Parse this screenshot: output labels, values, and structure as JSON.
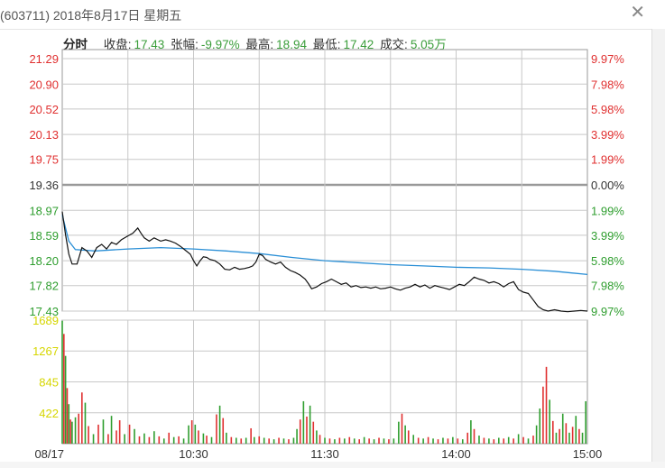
{
  "window": {
    "title": "(603711) 2018年8月17日 星期五",
    "close_label": "✕"
  },
  "stats": {
    "mode": "分时",
    "close_label": "收盘:",
    "close_value": "17.43",
    "change_label": "张幅:",
    "change_value": "-9.97%",
    "high_label": "最高:",
    "high_value": "18.94",
    "low_label": "最低:",
    "low_value": "17.42",
    "volume_label": "成交:",
    "volume_value": "5.05万"
  },
  "colors": {
    "up": "#e03030",
    "down": "#2f9e2f",
    "price_line": "#111111",
    "avg_line": "#2a8fd6",
    "grid": "#c8c8c8",
    "baseline": "#999999",
    "vol_axis": "#d6d600"
  },
  "chart_data": {
    "type": "line",
    "title": "",
    "x_ticks": [
      "08/17",
      "10:30",
      "11:30",
      "14:00",
      "15:00"
    ],
    "price_axis": {
      "ylim": [
        17.43,
        21.29
      ],
      "ticks": [
        "21.29",
        "20.90",
        "20.52",
        "20.13",
        "19.75",
        "19.36",
        "18.97",
        "18.59",
        "18.20",
        "17.82",
        "17.43"
      ],
      "pct_ticks": [
        "9.97%",
        "7.98%",
        "5.98%",
        "3.99%",
        "1.99%",
        "0.00%",
        "1.99%",
        "3.99%",
        "5.98%",
        "7.98%",
        "9.97%"
      ],
      "prev_close": 19.36
    },
    "volume_axis": {
      "ylim": [
        0,
        1689
      ],
      "ticks": [
        "1689",
        "1267",
        "845",
        "422"
      ]
    },
    "series": [
      {
        "key": "price",
        "points": [
          [
            0,
            18.95
          ],
          [
            2,
            18.6
          ],
          [
            4,
            18.3
          ],
          [
            6,
            18.15
          ],
          [
            9,
            18.15
          ],
          [
            12,
            18.4
          ],
          [
            15,
            18.35
          ],
          [
            18,
            18.25
          ],
          [
            21,
            18.4
          ],
          [
            24,
            18.45
          ],
          [
            27,
            18.38
          ],
          [
            30,
            18.48
          ],
          [
            33,
            18.45
          ],
          [
            36,
            18.52
          ],
          [
            40,
            18.58
          ],
          [
            43,
            18.62
          ],
          [
            46,
            18.7
          ],
          [
            48,
            18.62
          ],
          [
            50,
            18.55
          ],
          [
            53,
            18.5
          ],
          [
            56,
            18.55
          ],
          [
            60,
            18.5
          ],
          [
            63,
            18.52
          ],
          [
            66,
            18.5
          ],
          [
            69,
            18.47
          ],
          [
            72,
            18.42
          ],
          [
            75,
            18.36
          ],
          [
            78,
            18.3
          ],
          [
            80,
            18.2
          ],
          [
            82,
            18.12
          ],
          [
            84,
            18.2
          ],
          [
            86,
            18.26
          ],
          [
            88,
            18.25
          ],
          [
            90,
            18.22
          ],
          [
            93,
            18.2
          ],
          [
            96,
            18.15
          ],
          [
            99,
            18.07
          ],
          [
            102,
            18.06
          ],
          [
            105,
            18.1
          ],
          [
            108,
            18.07
          ],
          [
            111,
            18.08
          ],
          [
            114,
            18.1
          ],
          [
            116,
            18.12
          ],
          [
            118,
            18.18
          ],
          [
            120,
            18.3
          ],
          [
            122,
            18.28
          ],
          [
            124,
            18.22
          ],
          [
            127,
            18.18
          ],
          [
            130,
            18.15
          ],
          [
            133,
            18.18
          ],
          [
            136,
            18.1
          ],
          [
            139,
            18.05
          ],
          [
            142,
            18.02
          ],
          [
            145,
            17.98
          ],
          [
            148,
            17.92
          ],
          [
            150,
            17.85
          ],
          [
            152,
            17.77
          ],
          [
            155,
            17.8
          ],
          [
            158,
            17.85
          ],
          [
            161,
            17.88
          ],
          [
            164,
            17.92
          ],
          [
            167,
            17.88
          ],
          [
            170,
            17.84
          ],
          [
            173,
            17.86
          ],
          [
            176,
            17.8
          ],
          [
            179,
            17.82
          ],
          [
            182,
            17.79
          ],
          [
            185,
            17.8
          ],
          [
            188,
            17.78
          ],
          [
            191,
            17.8
          ],
          [
            194,
            17.77
          ],
          [
            197,
            17.78
          ],
          [
            200,
            17.8
          ],
          [
            203,
            17.77
          ],
          [
            206,
            17.75
          ],
          [
            209,
            17.78
          ],
          [
            212,
            17.8
          ],
          [
            215,
            17.84
          ],
          [
            218,
            17.8
          ],
          [
            221,
            17.83
          ],
          [
            224,
            17.78
          ],
          [
            227,
            17.82
          ],
          [
            230,
            17.8
          ],
          [
            233,
            17.78
          ],
          [
            236,
            17.76
          ],
          [
            239,
            17.8
          ],
          [
            242,
            17.84
          ],
          [
            245,
            17.82
          ],
          [
            248,
            17.88
          ],
          [
            251,
            17.95
          ],
          [
            254,
            17.92
          ],
          [
            257,
            17.9
          ],
          [
            260,
            17.86
          ],
          [
            263,
            17.88
          ],
          [
            266,
            17.85
          ],
          [
            269,
            17.8
          ],
          [
            272,
            17.85
          ],
          [
            275,
            17.88
          ],
          [
            278,
            17.76
          ],
          [
            281,
            17.72
          ],
          [
            284,
            17.7
          ],
          [
            287,
            17.6
          ],
          [
            290,
            17.5
          ],
          [
            293,
            17.45
          ],
          [
            296,
            17.43
          ],
          [
            300,
            17.45
          ],
          [
            304,
            17.43
          ],
          [
            308,
            17.42
          ],
          [
            312,
            17.43
          ],
          [
            316,
            17.44
          ],
          [
            320,
            17.43
          ]
        ]
      },
      {
        "key": "average",
        "points": [
          [
            0,
            18.9
          ],
          [
            4,
            18.5
          ],
          [
            8,
            18.37
          ],
          [
            20,
            18.35
          ],
          [
            40,
            18.38
          ],
          [
            60,
            18.4
          ],
          [
            80,
            18.38
          ],
          [
            100,
            18.35
          ],
          [
            120,
            18.31
          ],
          [
            140,
            18.25
          ],
          [
            160,
            18.2
          ],
          [
            180,
            18.17
          ],
          [
            200,
            18.14
          ],
          [
            220,
            18.12
          ],
          [
            240,
            18.1
          ],
          [
            260,
            18.09
          ],
          [
            280,
            18.07
          ],
          [
            300,
            18.04
          ],
          [
            320,
            17.99
          ]
        ]
      }
    ],
    "volume": [
      {
        "t": 0,
        "v": 1680,
        "up": false
      },
      {
        "t": 1,
        "v": 1500,
        "up": true
      },
      {
        "t": 2,
        "v": 1200,
        "up": false
      },
      {
        "t": 3,
        "v": 760,
        "up": true
      },
      {
        "t": 4,
        "v": 540,
        "up": false
      },
      {
        "t": 5,
        "v": 330,
        "up": true
      },
      {
        "t": 6,
        "v": 300,
        "up": false
      },
      {
        "t": 8,
        "v": 360,
        "up": false
      },
      {
        "t": 10,
        "v": 410,
        "up": true
      },
      {
        "t": 12,
        "v": 700,
        "up": true
      },
      {
        "t": 14,
        "v": 560,
        "up": false
      },
      {
        "t": 16,
        "v": 240,
        "up": true
      },
      {
        "t": 19,
        "v": 130,
        "up": false
      },
      {
        "t": 22,
        "v": 260,
        "up": true
      },
      {
        "t": 25,
        "v": 330,
        "up": false
      },
      {
        "t": 28,
        "v": 130,
        "up": true
      },
      {
        "t": 30,
        "v": 380,
        "up": false
      },
      {
        "t": 33,
        "v": 180,
        "up": true
      },
      {
        "t": 35,
        "v": 320,
        "up": true
      },
      {
        "t": 38,
        "v": 130,
        "up": false
      },
      {
        "t": 41,
        "v": 260,
        "up": true
      },
      {
        "t": 44,
        "v": 200,
        "up": false
      },
      {
        "t": 47,
        "v": 100,
        "up": true
      },
      {
        "t": 50,
        "v": 140,
        "up": false
      },
      {
        "t": 53,
        "v": 90,
        "up": true
      },
      {
        "t": 56,
        "v": 170,
        "up": false
      },
      {
        "t": 59,
        "v": 100,
        "up": true
      },
      {
        "t": 62,
        "v": 70,
        "up": false
      },
      {
        "t": 65,
        "v": 150,
        "up": true
      },
      {
        "t": 68,
        "v": 90,
        "up": false
      },
      {
        "t": 71,
        "v": 100,
        "up": true
      },
      {
        "t": 74,
        "v": 70,
        "up": false
      },
      {
        "t": 77,
        "v": 250,
        "up": false
      },
      {
        "t": 79,
        "v": 320,
        "up": true
      },
      {
        "t": 81,
        "v": 260,
        "up": false
      },
      {
        "t": 83,
        "v": 180,
        "up": true
      },
      {
        "t": 86,
        "v": 140,
        "up": false
      },
      {
        "t": 88,
        "v": 110,
        "up": true
      },
      {
        "t": 91,
        "v": 90,
        "up": false
      },
      {
        "t": 94,
        "v": 400,
        "up": true
      },
      {
        "t": 96,
        "v": 520,
        "up": false
      },
      {
        "t": 98,
        "v": 350,
        "up": true
      },
      {
        "t": 100,
        "v": 150,
        "up": false
      },
      {
        "t": 103,
        "v": 90,
        "up": true
      },
      {
        "t": 106,
        "v": 80,
        "up": false
      },
      {
        "t": 109,
        "v": 70,
        "up": true
      },
      {
        "t": 112,
        "v": 80,
        "up": false
      },
      {
        "t": 115,
        "v": 210,
        "up": true
      },
      {
        "t": 117,
        "v": 90,
        "up": false
      },
      {
        "t": 120,
        "v": 100,
        "up": true
      },
      {
        "t": 123,
        "v": 80,
        "up": false
      },
      {
        "t": 126,
        "v": 70,
        "up": true
      },
      {
        "t": 129,
        "v": 60,
        "up": false
      },
      {
        "t": 132,
        "v": 80,
        "up": true
      },
      {
        "t": 135,
        "v": 70,
        "up": false
      },
      {
        "t": 138,
        "v": 60,
        "up": true
      },
      {
        "t": 141,
        "v": 80,
        "up": false
      },
      {
        "t": 143,
        "v": 200,
        "up": false
      },
      {
        "t": 145,
        "v": 330,
        "up": true
      },
      {
        "t": 147,
        "v": 580,
        "up": false
      },
      {
        "t": 149,
        "v": 370,
        "up": true
      },
      {
        "t": 151,
        "v": 520,
        "up": false
      },
      {
        "t": 153,
        "v": 300,
        "up": true
      },
      {
        "t": 155,
        "v": 180,
        "up": false
      },
      {
        "t": 157,
        "v": 120,
        "up": true
      },
      {
        "t": 160,
        "v": 80,
        "up": false
      },
      {
        "t": 163,
        "v": 70,
        "up": true
      },
      {
        "t": 166,
        "v": 60,
        "up": false
      },
      {
        "t": 169,
        "v": 80,
        "up": true
      },
      {
        "t": 172,
        "v": 70,
        "up": false
      },
      {
        "t": 175,
        "v": 90,
        "up": true
      },
      {
        "t": 178,
        "v": 70,
        "up": false
      },
      {
        "t": 181,
        "v": 60,
        "up": true
      },
      {
        "t": 184,
        "v": 90,
        "up": false
      },
      {
        "t": 187,
        "v": 70,
        "up": true
      },
      {
        "t": 190,
        "v": 60,
        "up": false
      },
      {
        "t": 193,
        "v": 80,
        "up": true
      },
      {
        "t": 196,
        "v": 70,
        "up": false
      },
      {
        "t": 199,
        "v": 60,
        "up": true
      },
      {
        "t": 202,
        "v": 70,
        "up": false
      },
      {
        "t": 205,
        "v": 300,
        "up": false
      },
      {
        "t": 207,
        "v": 410,
        "up": true
      },
      {
        "t": 209,
        "v": 250,
        "up": false
      },
      {
        "t": 211,
        "v": 180,
        "up": true
      },
      {
        "t": 214,
        "v": 120,
        "up": false
      },
      {
        "t": 217,
        "v": 80,
        "up": true
      },
      {
        "t": 220,
        "v": 70,
        "up": false
      },
      {
        "t": 223,
        "v": 90,
        "up": true
      },
      {
        "t": 226,
        "v": 70,
        "up": false
      },
      {
        "t": 229,
        "v": 60,
        "up": true
      },
      {
        "t": 232,
        "v": 80,
        "up": false
      },
      {
        "t": 235,
        "v": 70,
        "up": true
      },
      {
        "t": 238,
        "v": 90,
        "up": false
      },
      {
        "t": 241,
        "v": 70,
        "up": true
      },
      {
        "t": 244,
        "v": 60,
        "up": false
      },
      {
        "t": 247,
        "v": 150,
        "up": true
      },
      {
        "t": 249,
        "v": 320,
        "up": false
      },
      {
        "t": 251,
        "v": 200,
        "up": true
      },
      {
        "t": 254,
        "v": 110,
        "up": false
      },
      {
        "t": 257,
        "v": 80,
        "up": true
      },
      {
        "t": 260,
        "v": 70,
        "up": false
      },
      {
        "t": 263,
        "v": 60,
        "up": true
      },
      {
        "t": 266,
        "v": 80,
        "up": false
      },
      {
        "t": 269,
        "v": 70,
        "up": true
      },
      {
        "t": 272,
        "v": 90,
        "up": false
      },
      {
        "t": 275,
        "v": 70,
        "up": true
      },
      {
        "t": 278,
        "v": 130,
        "up": false
      },
      {
        "t": 281,
        "v": 90,
        "up": true
      },
      {
        "t": 284,
        "v": 70,
        "up": false
      },
      {
        "t": 287,
        "v": 110,
        "up": true
      },
      {
        "t": 289,
        "v": 250,
        "up": false
      },
      {
        "t": 291,
        "v": 480,
        "up": false
      },
      {
        "t": 293,
        "v": 780,
        "up": true
      },
      {
        "t": 295,
        "v": 1050,
        "up": true
      },
      {
        "t": 297,
        "v": 600,
        "up": false
      },
      {
        "t": 299,
        "v": 310,
        "up": true
      },
      {
        "t": 301,
        "v": 150,
        "up": false
      },
      {
        "t": 303,
        "v": 200,
        "up": true
      },
      {
        "t": 305,
        "v": 410,
        "up": false
      },
      {
        "t": 307,
        "v": 280,
        "up": true
      },
      {
        "t": 309,
        "v": 150,
        "up": false
      },
      {
        "t": 311,
        "v": 230,
        "up": true
      },
      {
        "t": 313,
        "v": 380,
        "up": false
      },
      {
        "t": 315,
        "v": 200,
        "up": true
      },
      {
        "t": 317,
        "v": 150,
        "up": false
      },
      {
        "t": 319,
        "v": 580,
        "up": false
      }
    ]
  }
}
